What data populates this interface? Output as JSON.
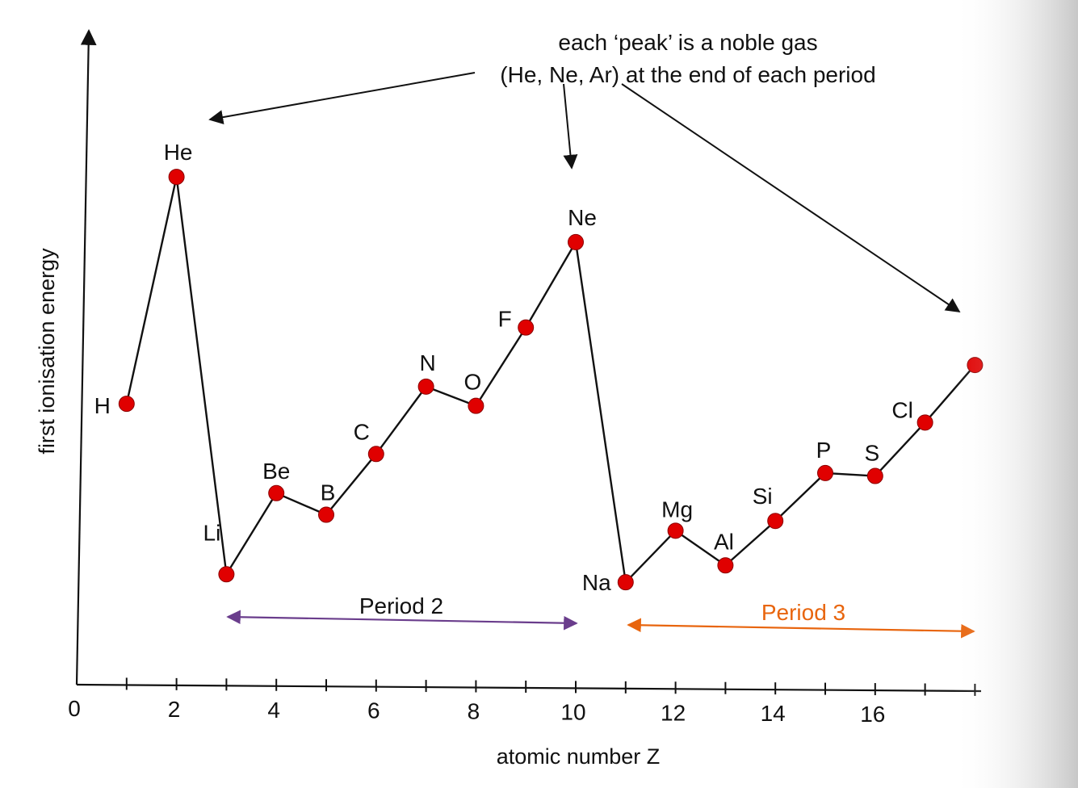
{
  "chart_data": {
    "type": "line",
    "xlabel": "atomic number Z",
    "ylabel": "first ionisation energy",
    "xlim": [
      0,
      18
    ],
    "ylim": [
      0,
      2500
    ],
    "x_ticks": [
      0,
      2,
      4,
      6,
      8,
      10,
      12,
      14,
      16
    ],
    "x_tick_step": 1,
    "series": [
      {
        "color": "#e00000",
        "points": [
          {
            "x": 1,
            "y": 1312,
            "label": "H"
          },
          {
            "x": 2,
            "y": 2372,
            "label": "He"
          },
          {
            "x": 3,
            "y": 520,
            "label": "Li"
          },
          {
            "x": 4,
            "y": 900,
            "label": "Be"
          },
          {
            "x": 5,
            "y": 801,
            "label": "B"
          },
          {
            "x": 6,
            "y": 1086,
            "label": "C"
          },
          {
            "x": 7,
            "y": 1402,
            "label": "N"
          },
          {
            "x": 8,
            "y": 1314,
            "label": "O"
          },
          {
            "x": 9,
            "y": 1681,
            "label": "F"
          },
          {
            "x": 10,
            "y": 2081,
            "label": "Ne"
          },
          {
            "x": 11,
            "y": 496,
            "label": "Na"
          },
          {
            "x": 12,
            "y": 738,
            "label": "Mg"
          },
          {
            "x": 13,
            "y": 578,
            "label": "Al"
          },
          {
            "x": 14,
            "y": 787,
            "label": "Si"
          },
          {
            "x": 15,
            "y": 1012,
            "label": "P"
          },
          {
            "x": 16,
            "y": 1000,
            "label": "S"
          },
          {
            "x": 17,
            "y": 1251,
            "label": "Cl"
          },
          {
            "x": 18,
            "y": 1521,
            "label": ""
          }
        ]
      }
    ],
    "annotations": {
      "noble_gas_line1": "each ‘peak’ is a noble gas",
      "noble_gas_line2": "(He, Ne, Ar) at the end of each period",
      "period2": {
        "text": "Period 2",
        "from": 3,
        "to": 10,
        "color": "#6a3d8c"
      },
      "period3": {
        "text": "Period 3",
        "from": 11,
        "to": 18,
        "color": "#e8650e"
      }
    }
  }
}
